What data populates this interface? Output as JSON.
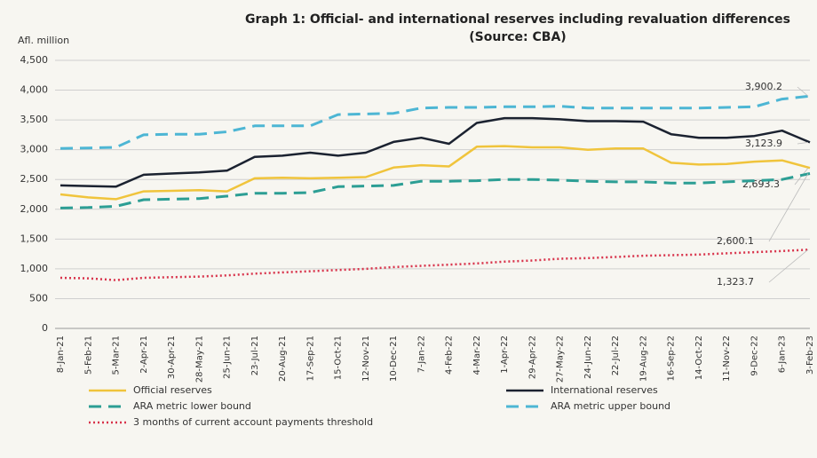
{
  "chart_data": {
    "type": "line",
    "title": "Graph 1: Official- and international reserves including revaluation differences",
    "subtitle": "(Source: CBA)",
    "y_label": "Afl. million",
    "categories": [
      "8-Jan-21",
      "5-Feb-21",
      "5-Mar-21",
      "2-Apr-21",
      "30-Apr-21",
      "28-May-21",
      "25-Jun-21",
      "23-Jul-21",
      "20-Aug-21",
      "17-Sep-21",
      "15-Oct-21",
      "12-Nov-21",
      "10-Dec-21",
      "7-Jan-22",
      "4-Feb-22",
      "4-Mar-22",
      "1-Apr-22",
      "29-Apr-22",
      "27-May-22",
      "24-Jun-22",
      "22-Jul-22",
      "19-Aug-22",
      "16-Sep-22",
      "14-Oct-22",
      "11-Nov-22",
      "9-Dec-22",
      "6-Jan-23",
      "3-Feb-23"
    ],
    "series": [
      {
        "name": "Official reserves",
        "color": "#f0c43c",
        "style": "solid",
        "values": [
          2250,
          2200,
          2170,
          2300,
          2310,
          2320,
          2300,
          2520,
          2530,
          2520,
          2530,
          2540,
          2700,
          2740,
          2720,
          3050,
          3060,
          3040,
          3040,
          3000,
          3020,
          3020,
          2780,
          2750,
          2760,
          2800,
          2820,
          2693.3
        ],
        "value_labels": [
          null,
          null,
          null,
          null,
          null,
          null,
          null,
          null,
          null,
          null,
          null,
          null,
          null,
          null,
          null,
          null,
          null,
          null,
          null,
          null,
          null,
          null,
          null,
          null,
          null,
          null,
          null,
          "2,693.3"
        ]
      },
      {
        "name": "International reserves",
        "color": "#1b2230",
        "style": "solid",
        "values": [
          2400,
          2390,
          2380,
          2580,
          2600,
          2620,
          2650,
          2880,
          2900,
          2950,
          2900,
          2950,
          3130,
          3200,
          3100,
          3450,
          3530,
          3530,
          3510,
          3480,
          3480,
          3470,
          3260,
          3200,
          3200,
          3230,
          3320,
          3123.9
        ],
        "value_labels": [
          null,
          null,
          null,
          null,
          null,
          null,
          null,
          null,
          null,
          null,
          null,
          null,
          null,
          null,
          null,
          null,
          null,
          null,
          null,
          null,
          null,
          null,
          null,
          null,
          null,
          null,
          null,
          "3,123.9"
        ]
      },
      {
        "name": "ARA metric lower bound",
        "color": "#2c9e94",
        "style": "dashed",
        "values": [
          2020,
          2030,
          2050,
          2160,
          2170,
          2180,
          2220,
          2270,
          2270,
          2280,
          2380,
          2390,
          2400,
          2470,
          2470,
          2480,
          2500,
          2500,
          2490,
          2470,
          2460,
          2460,
          2440,
          2440,
          2460,
          2480,
          2500,
          2600.1
        ],
        "value_labels": [
          null,
          null,
          null,
          null,
          null,
          null,
          null,
          null,
          null,
          null,
          null,
          null,
          null,
          null,
          null,
          null,
          null,
          null,
          null,
          null,
          null,
          null,
          null,
          null,
          null,
          null,
          null,
          "2,600.1"
        ]
      },
      {
        "name": "ARA metric upper bound",
        "color": "#4db6d4",
        "style": "dashed",
        "values": [
          3020,
          3030,
          3040,
          3250,
          3260,
          3260,
          3300,
          3400,
          3400,
          3400,
          3590,
          3600,
          3610,
          3700,
          3710,
          3710,
          3720,
          3720,
          3730,
          3700,
          3700,
          3700,
          3700,
          3700,
          3710,
          3720,
          3850,
          3900.2
        ],
        "value_labels": [
          null,
          null,
          null,
          null,
          null,
          null,
          null,
          null,
          null,
          null,
          null,
          null,
          null,
          null,
          null,
          null,
          null,
          null,
          null,
          null,
          null,
          null,
          null,
          null,
          null,
          null,
          null,
          "3,900.2"
        ]
      },
      {
        "name": "3 months of current account payments threshold",
        "color": "#d8334b",
        "style": "dotted",
        "values": [
          850,
          840,
          810,
          850,
          860,
          870,
          890,
          920,
          940,
          960,
          980,
          1000,
          1030,
          1050,
          1070,
          1090,
          1120,
          1140,
          1170,
          1180,
          1200,
          1220,
          1230,
          1240,
          1260,
          1280,
          1300,
          1323.7
        ],
        "value_labels": [
          null,
          null,
          null,
          null,
          null,
          null,
          null,
          null,
          null,
          null,
          null,
          null,
          null,
          null,
          null,
          null,
          null,
          null,
          null,
          null,
          null,
          null,
          null,
          null,
          null,
          null,
          null,
          "1,323.7"
        ]
      }
    ],
    "ylim": [
      0,
      4500
    ],
    "yticks": [
      0,
      500,
      {
        "value": 1000,
        "label": "1,000"
      },
      {
        "value": 1500,
        "label": "1,500"
      },
      {
        "value": 2000,
        "label": "2,000"
      },
      {
        "value": 2500,
        "label": "2,500"
      },
      {
        "value": 3000,
        "label": "3,000"
      },
      {
        "value": 3500,
        "label": "3,500"
      },
      {
        "value": 4000,
        "label": "4,000"
      },
      {
        "value": 4500,
        "label": "4,500"
      }
    ],
    "grid": true
  }
}
